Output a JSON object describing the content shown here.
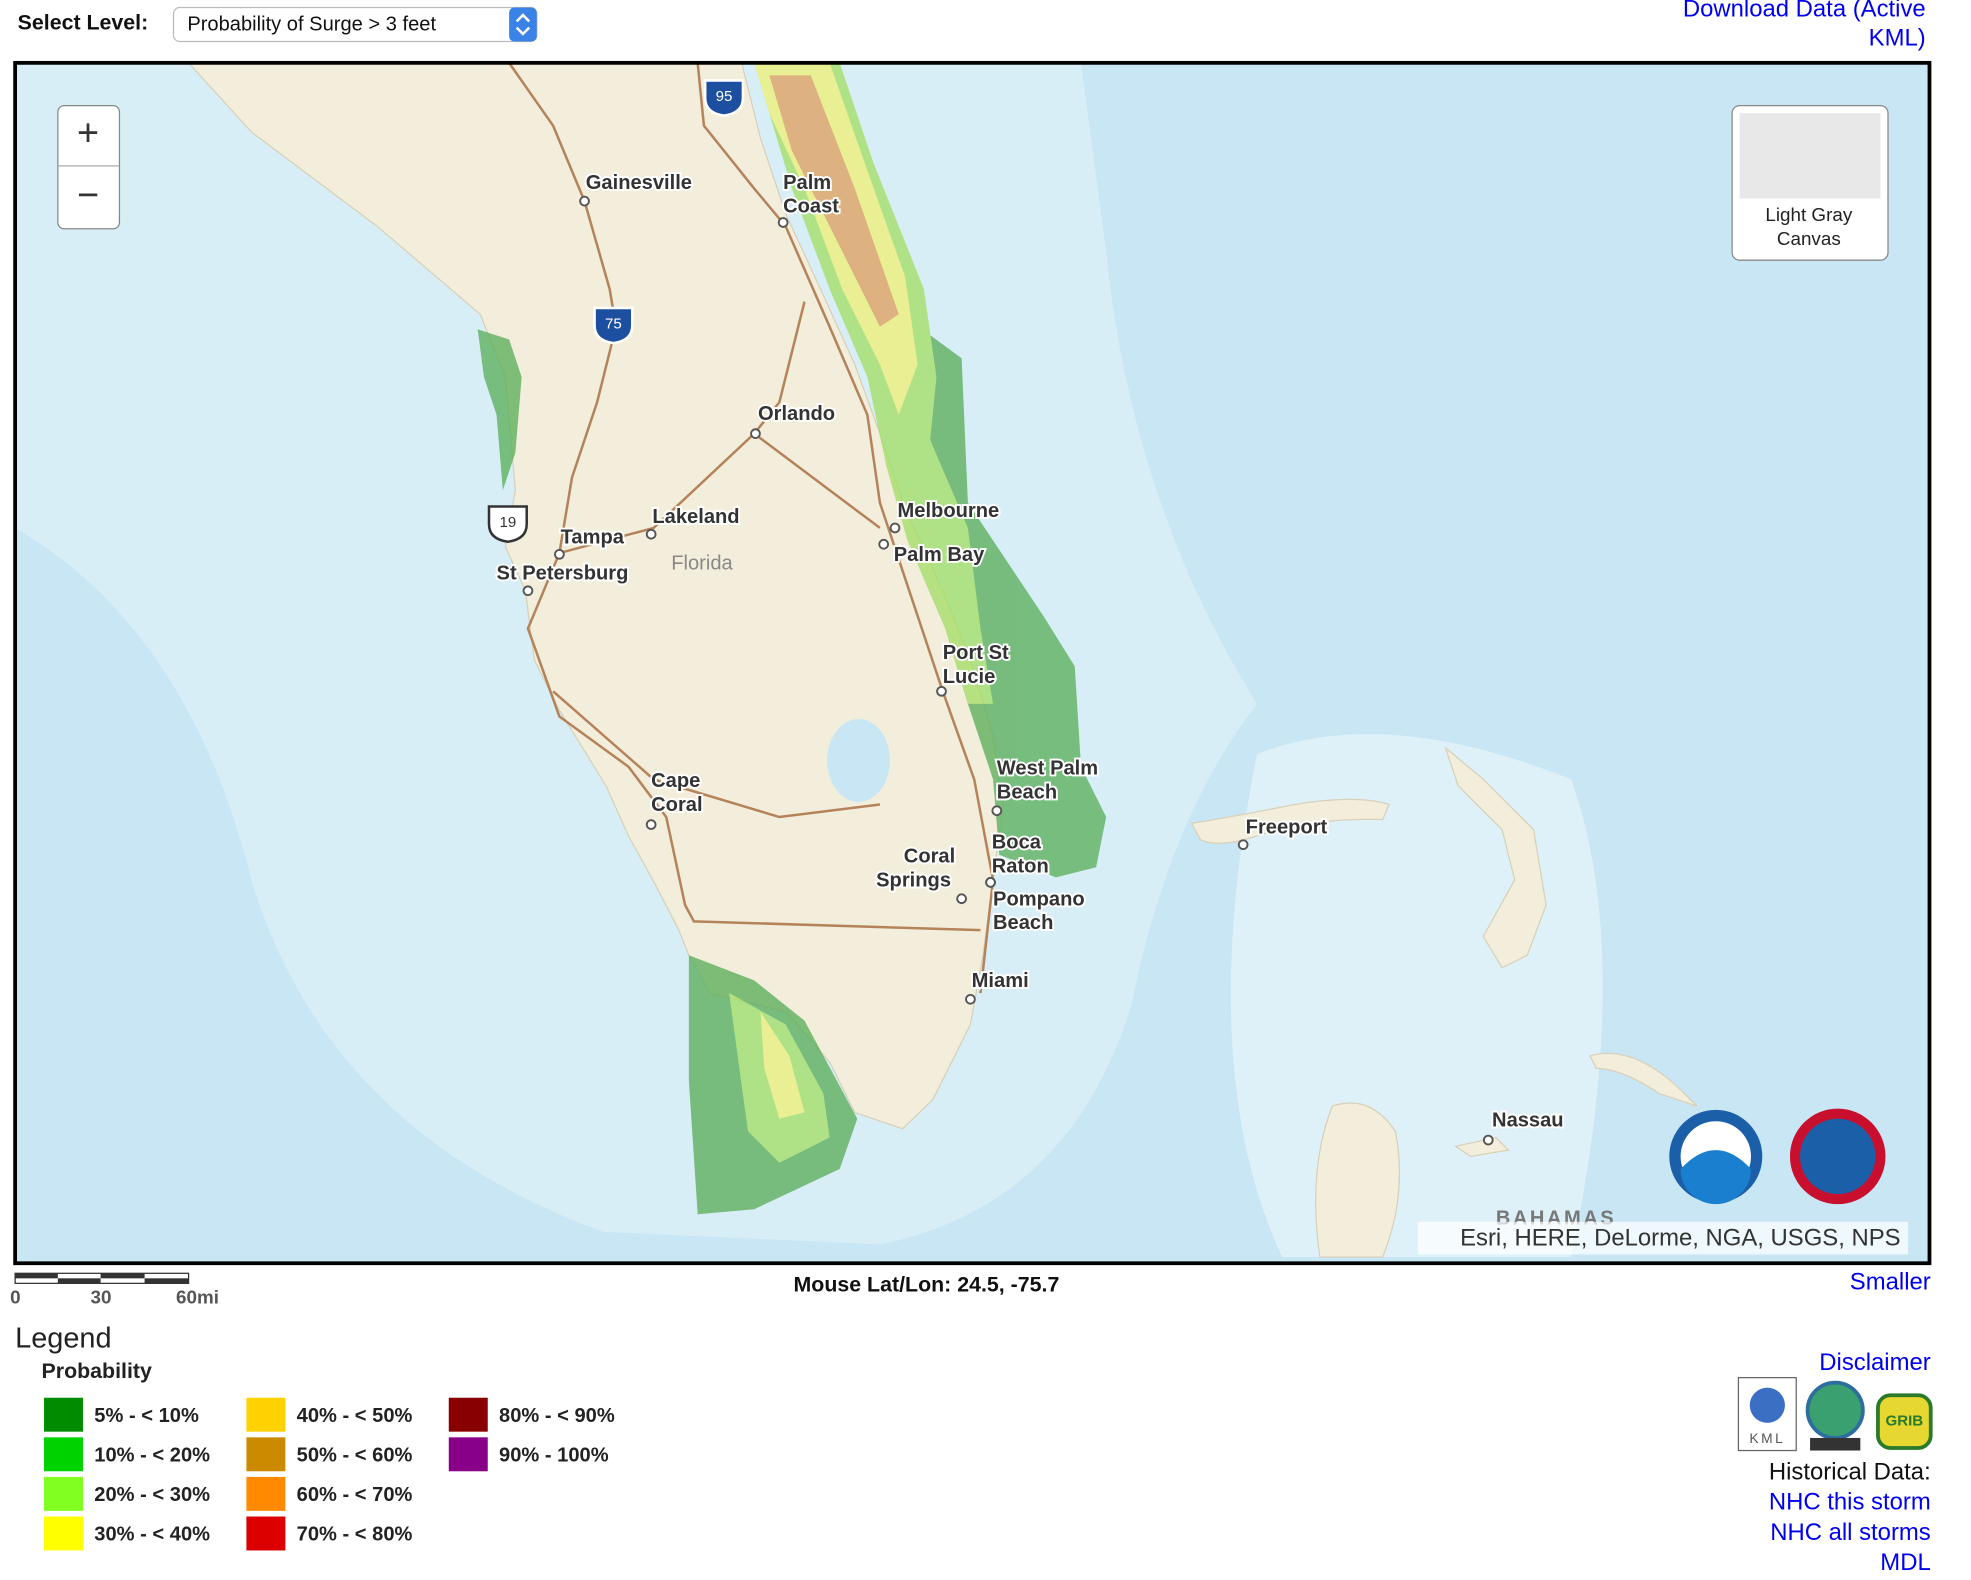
{
  "toolbar": {
    "select_label": "Select Level:",
    "select_value": "Probability of Surge > 3 feet",
    "download_link": [
      "Download Data (Active",
      "KML)"
    ]
  },
  "map": {
    "zoom_in": "+",
    "zoom_out": "−",
    "basemap_label": [
      "Light Gray",
      "Canvas"
    ],
    "shields": [
      "95",
      "75",
      "19"
    ],
    "region_label": "Florida",
    "country_label": "BAHAMAS",
    "places": [
      {
        "lines": [
          "Gainesville"
        ]
      },
      {
        "lines": [
          "Palm",
          "Coast"
        ]
      },
      {
        "lines": [
          "Orlando"
        ]
      },
      {
        "lines": [
          "Lakeland"
        ]
      },
      {
        "lines": [
          "Tampa"
        ]
      },
      {
        "lines": [
          "St Petersburg"
        ]
      },
      {
        "lines": [
          "Melbourne"
        ]
      },
      {
        "lines": [
          "Palm Bay"
        ]
      },
      {
        "lines": [
          "Port St",
          "Lucie"
        ]
      },
      {
        "lines": [
          "West Palm",
          "Beach"
        ]
      },
      {
        "lines": [
          "Boca",
          "Raton"
        ]
      },
      {
        "lines": [
          "Coral",
          "Springs"
        ]
      },
      {
        "lines": [
          "Pompano",
          "Beach"
        ]
      },
      {
        "lines": [
          "Cape",
          "Coral"
        ]
      },
      {
        "lines": [
          "Miami"
        ]
      },
      {
        "lines": [
          "Freeport"
        ]
      },
      {
        "lines": [
          "Nassau"
        ]
      }
    ],
    "attribution": "Esri, HERE, DeLorme, NGA, USGS, NPS"
  },
  "scale_bar": {
    "labels": [
      "0",
      "30",
      "60mi"
    ]
  },
  "mouse_position": "Mouse Lat/Lon: 24.5, -75.7",
  "smaller_link": "Smaller",
  "legend": {
    "title": "Legend",
    "subtitle": "Probability",
    "items": [
      {
        "label": "5% - < 10%",
        "color": "#008c00"
      },
      {
        "label": "10% - < 20%",
        "color": "#00d200"
      },
      {
        "label": "20% - < 30%",
        "color": "#80ff20"
      },
      {
        "label": "30% - < 40%",
        "color": "#ffff00"
      },
      {
        "label": "40% - < 50%",
        "color": "#ffd200"
      },
      {
        "label": "50% - < 60%",
        "color": "#cc8a00"
      },
      {
        "label": "60% - < 70%",
        "color": "#ff8a00"
      },
      {
        "label": "70% - < 80%",
        "color": "#dd0000"
      },
      {
        "label": "80% - < 90%",
        "color": "#880000"
      },
      {
        "label": "90% - 100%",
        "color": "#880088"
      }
    ]
  },
  "links": {
    "disclaimer": "Disclaimer",
    "icons": {
      "kml": "KML",
      "grib": "GRIB"
    },
    "historical_label": "Historical Data:",
    "nhc_this_storm": "NHC this storm",
    "nhc_all_storms": "NHC all storms",
    "mdl": "MDL"
  }
}
